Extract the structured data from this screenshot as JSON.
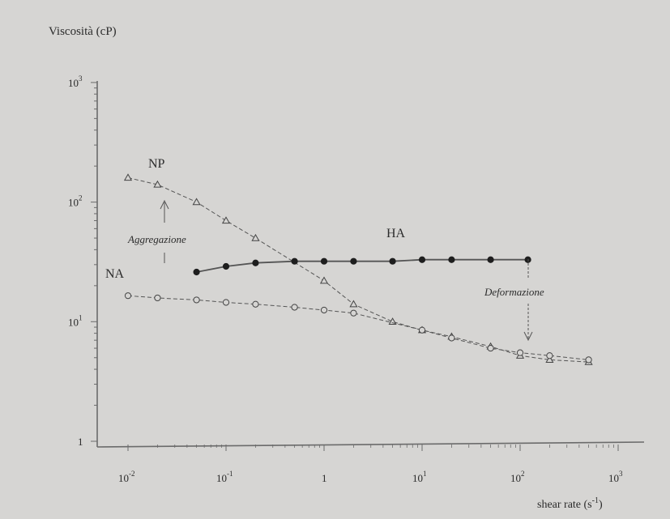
{
  "chart_data": {
    "type": "line",
    "title": "",
    "ylabel": "Viscosità (cP)",
    "xlabel_text": "shear rate (s",
    "xlabel_sup": "-1",
    "xlabel_close": ")",
    "xscale": "log",
    "yscale": "log",
    "xlim": [
      0.01,
      1000
    ],
    "ylim": [
      1,
      1000
    ],
    "grid": false,
    "x_ticks": [
      {
        "base": "10",
        "exp": "-2"
      },
      {
        "base": "10",
        "exp": "-1"
      },
      {
        "base": "1",
        "exp": ""
      },
      {
        "base": "10",
        "exp": "1"
      },
      {
        "base": "10",
        "exp": "2"
      },
      {
        "base": "10",
        "exp": "3"
      }
    ],
    "y_ticks": [
      {
        "base": "1",
        "exp": ""
      },
      {
        "base": "10",
        "exp": "1"
      },
      {
        "base": "10",
        "exp": "2"
      },
      {
        "base": "10",
        "exp": "3"
      }
    ],
    "series": [
      {
        "name": "NP",
        "marker": "triangle-open",
        "line": "dashed",
        "x": [
          0.01,
          0.02,
          0.05,
          0.1,
          0.2,
          1,
          2,
          5,
          10,
          20,
          50,
          100,
          200,
          500
        ],
        "y": [
          160,
          140,
          100,
          70,
          50,
          22,
          14,
          10,
          8.5,
          7.5,
          6.2,
          5.2,
          4.8,
          4.6
        ]
      },
      {
        "name": "HA",
        "marker": "circle-filled",
        "line": "solid",
        "x": [
          0.05,
          0.1,
          0.2,
          0.5,
          1,
          2,
          5,
          10,
          20,
          50,
          120
        ],
        "y": [
          26,
          29,
          31,
          32,
          32,
          32,
          32,
          33,
          33,
          33,
          33
        ]
      },
      {
        "name": "NA",
        "marker": "circle-open",
        "line": "dashed",
        "x": [
          0.01,
          0.02,
          0.05,
          0.1,
          0.2,
          0.5,
          1,
          2,
          10,
          20,
          50,
          100,
          200,
          500
        ],
        "y": [
          16.5,
          15.8,
          15.2,
          14.5,
          14,
          13.2,
          12.5,
          11.8,
          8.5,
          7.3,
          6,
          5.5,
          5.2,
          4.8
        ]
      }
    ],
    "annotations": [
      {
        "id": "np",
        "text": "NP",
        "italic": false
      },
      {
        "id": "ha",
        "text": "HA",
        "italic": false
      },
      {
        "id": "na",
        "text": "NA",
        "italic": false
      },
      {
        "id": "aggregazione",
        "text": "Aggregazione",
        "italic": true
      },
      {
        "id": "deformazione",
        "text": "Deformazione",
        "italic": true
      }
    ]
  }
}
